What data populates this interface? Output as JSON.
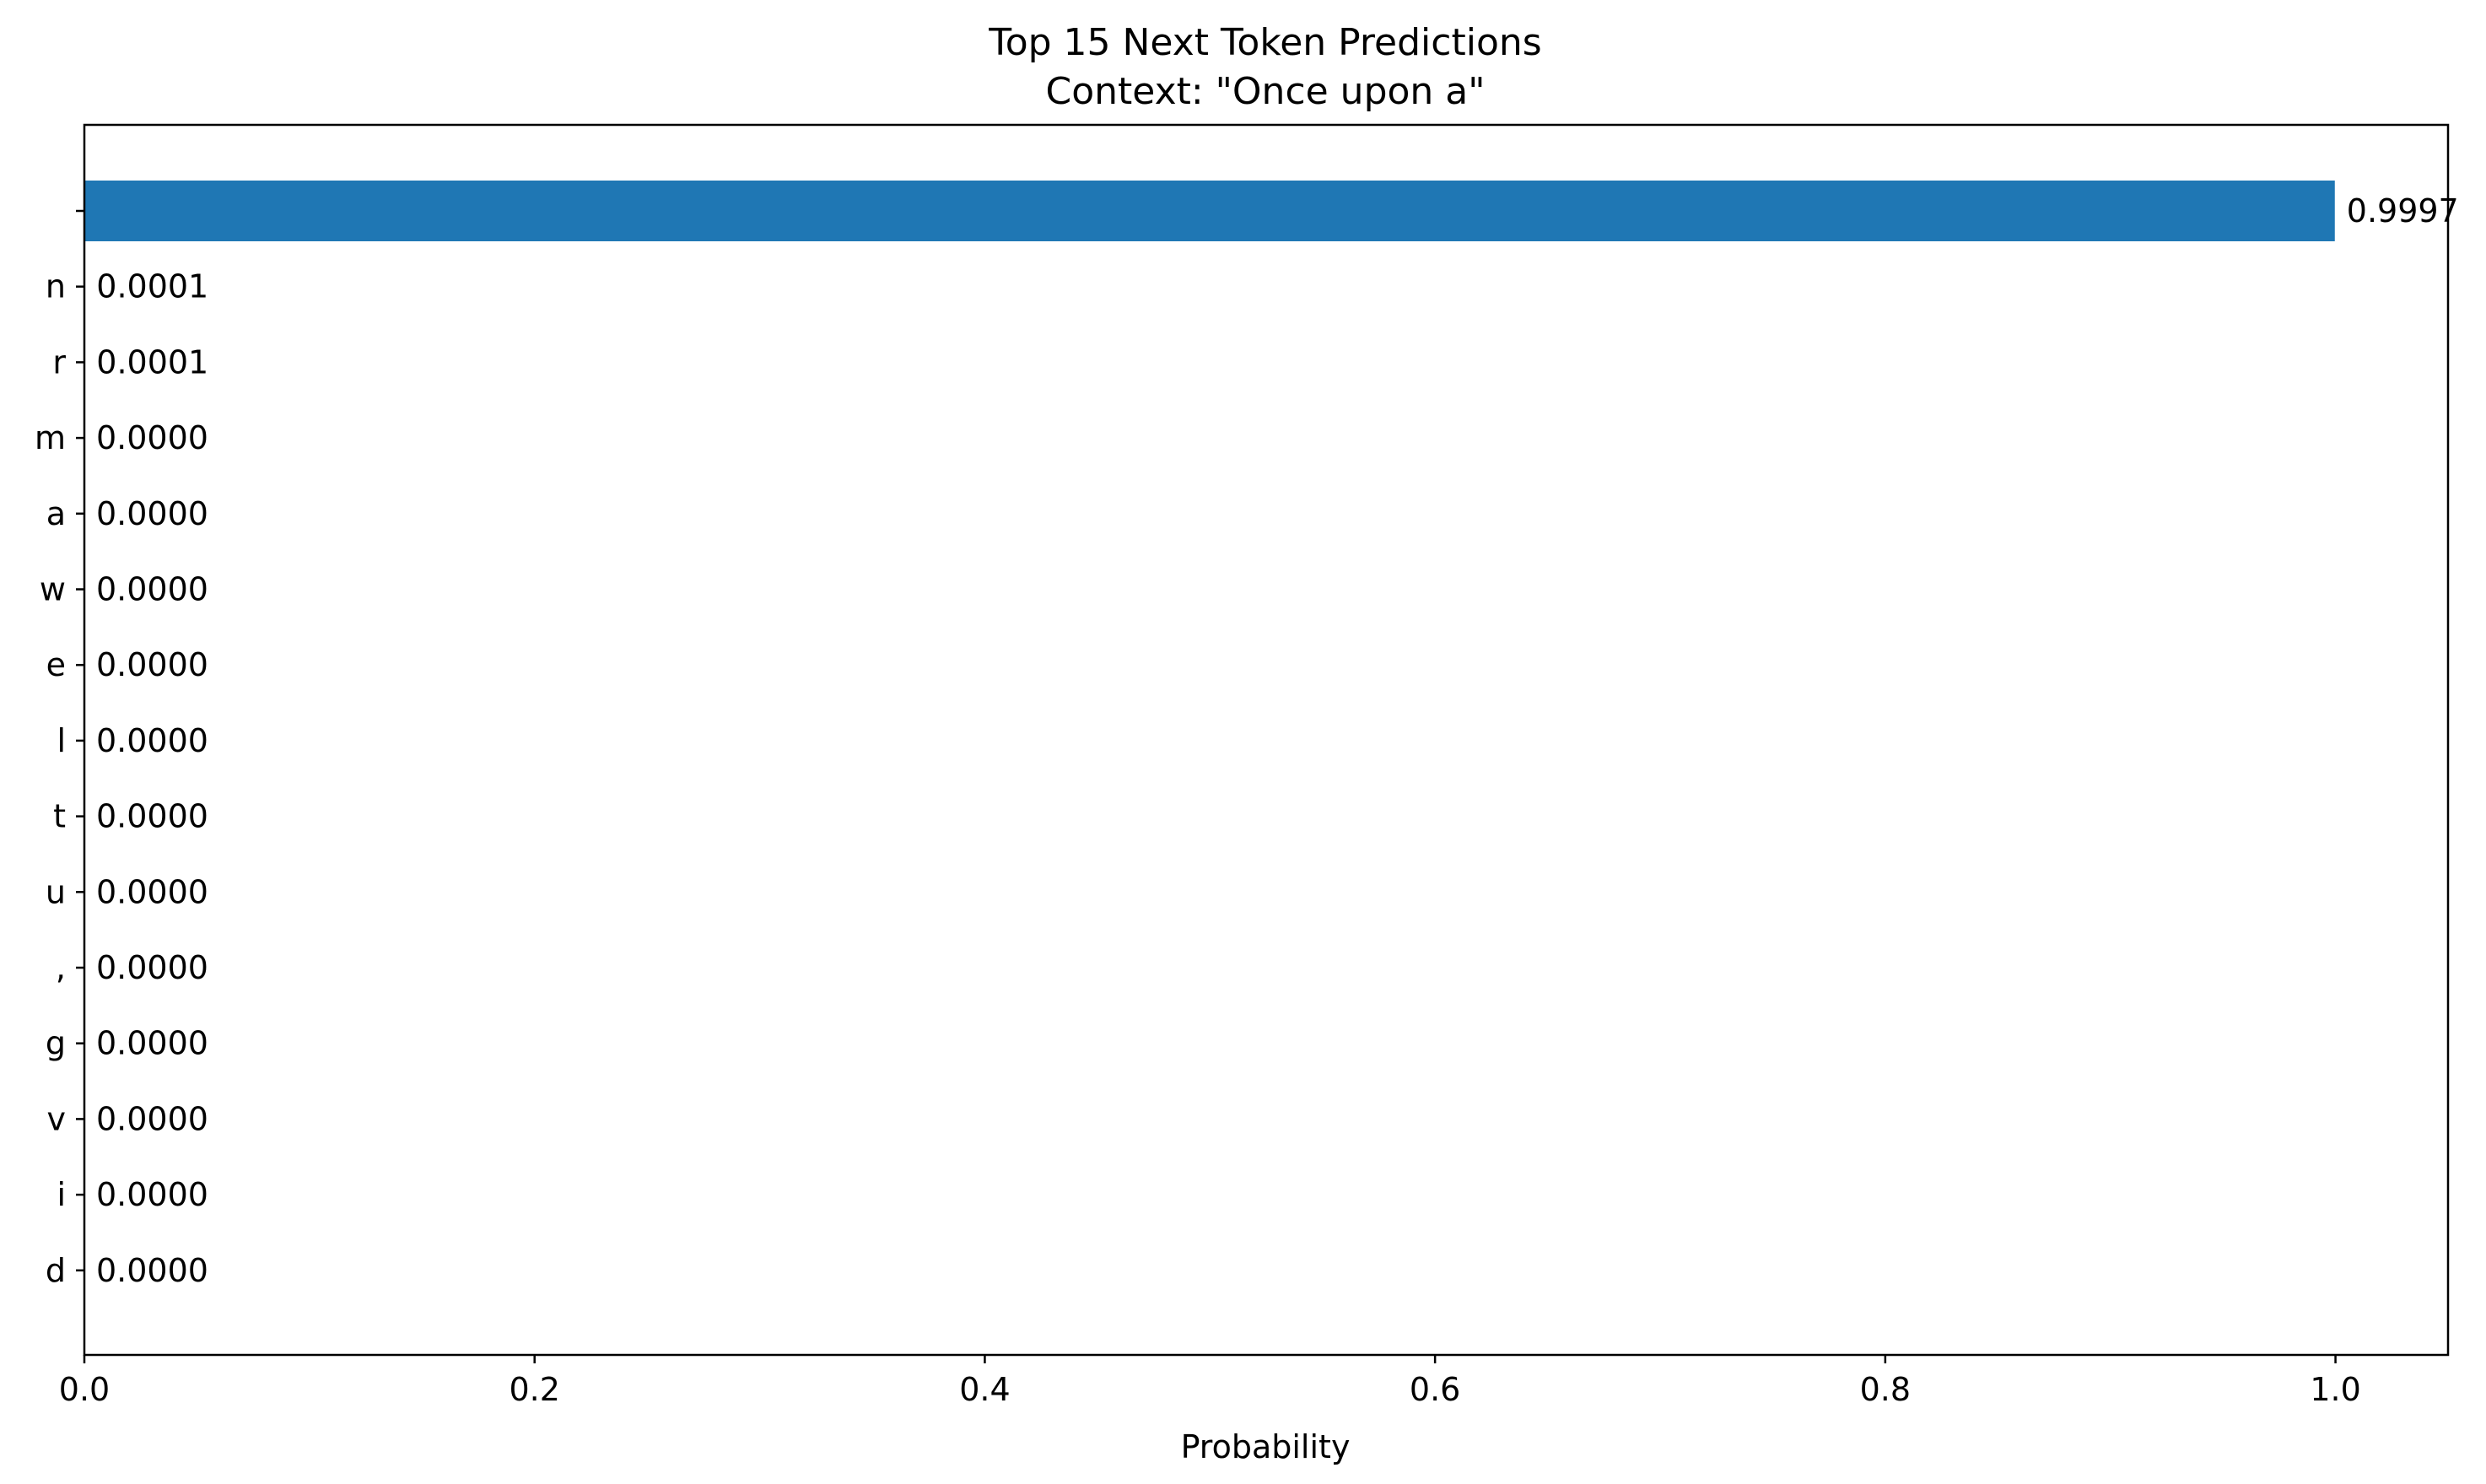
{
  "chart_data": {
    "type": "bar",
    "orientation": "horizontal",
    "title": "Top 15 Next Token Predictions",
    "subtitle": "Context: \"Once upon a\"",
    "xlabel": "Probability",
    "ylabel": "",
    "xlim": [
      0,
      1.05
    ],
    "xticks": [
      0.0,
      0.2,
      0.4,
      0.6,
      0.8,
      1.0
    ],
    "xtick_labels": [
      "0.0",
      "0.2",
      "0.4",
      "0.6",
      "0.8",
      "1.0"
    ],
    "grid": false,
    "bar_color": "#1f77b4",
    "categories": [
      " ",
      "n",
      "r",
      "m",
      "a",
      "w",
      "e",
      "l",
      "t",
      "u",
      ",",
      "g",
      "v",
      "i",
      "d"
    ],
    "values": [
      0.9997,
      0.0001,
      0.0001,
      0.0,
      0.0,
      0.0,
      0.0,
      0.0,
      0.0,
      0.0,
      0.0,
      0.0,
      0.0,
      0.0,
      0.0
    ],
    "value_labels": [
      "0.9997",
      "0.0001",
      "0.0001",
      "0.0000",
      "0.0000",
      "0.0000",
      "0.0000",
      "0.0000",
      "0.0000",
      "0.0000",
      "0.0000",
      "0.0000",
      "0.0000",
      "0.0000",
      "0.0000"
    ]
  }
}
